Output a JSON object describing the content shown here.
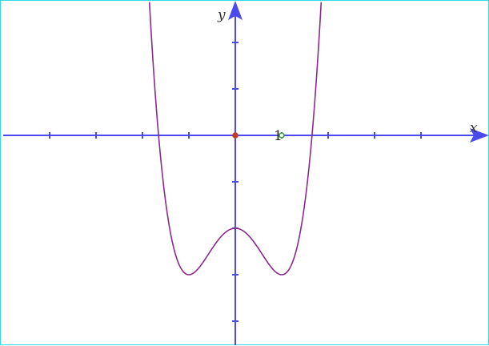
{
  "chart_data": {
    "type": "line",
    "title": "",
    "xlabel": "x",
    "ylabel": "y",
    "xlim": [
      -5,
      5.25
    ],
    "ylim": [
      -4.5,
      2.9
    ],
    "x_ticks": [
      -4,
      -3,
      -2,
      -1,
      1,
      2,
      3,
      4
    ],
    "y_ticks": [
      -4,
      -3,
      -2,
      -1,
      1,
      2
    ],
    "tick_labels": [
      {
        "x": 1,
        "y": 0,
        "text": "1"
      }
    ],
    "grid": false,
    "series": [
      {
        "function": "x^4 - 2x^2 - 2",
        "x": [
          -1.85,
          -1.75,
          -1.65,
          -1.5,
          -1.25,
          -1,
          -0.75,
          -0.5,
          -0.25,
          0,
          0.25,
          0.5,
          0.75,
          1,
          1.25,
          1.5,
          1.65,
          1.75,
          1.85
        ],
        "y": [
          2.87,
          1.25,
          0.0,
          -1.44,
          -2.68,
          -3,
          -2.81,
          -2.44,
          -2.12,
          -2,
          -2.12,
          -2.44,
          -2.81,
          -3,
          -2.68,
          -1.44,
          0.0,
          1.25,
          2.87
        ],
        "color": "#8b2a8e"
      }
    ],
    "points": [
      {
        "x": 0,
        "y": 0,
        "color": "#c0392b",
        "fill": true
      },
      {
        "x": 1,
        "y": 0,
        "color": "#2e9e2e",
        "fill": false
      }
    ],
    "axis_color": "#4a4af0"
  }
}
